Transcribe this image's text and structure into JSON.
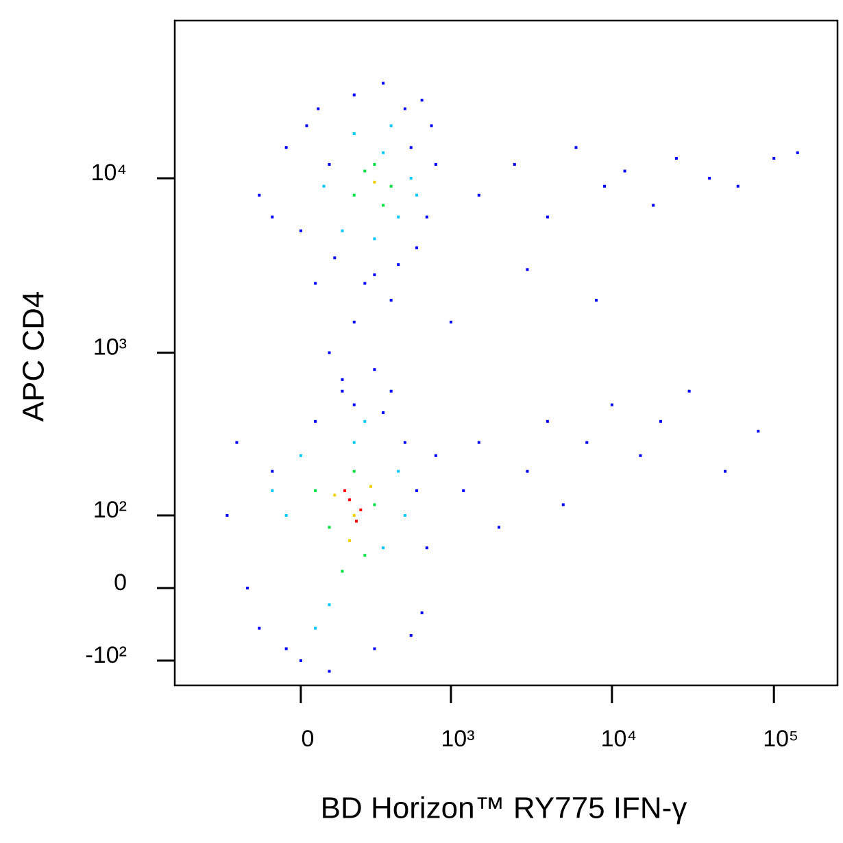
{
  "chart_data": {
    "type": "scatter",
    "scale": "biexponential",
    "xlabel": "BD Horizon™ RY775  IFN-γ",
    "ylabel": "APC CD4",
    "xlim": [
      -700,
      247000
    ],
    "ylim": [
      -150,
      80000
    ],
    "xticks": [
      0,
      {
        "value": 1000,
        "label": "10³"
      },
      {
        "value": 10000,
        "label": "10⁴"
      },
      {
        "value": 100000,
        "label": "10⁵"
      }
    ],
    "yticks": [
      {
        "value": -100,
        "label": "-10²"
      },
      0,
      {
        "value": 100,
        "label": "10²"
      },
      {
        "value": 1000,
        "label": "10³"
      },
      {
        "value": 10000,
        "label": "10⁴"
      }
    ],
    "series": [
      {
        "color": "#0000ff",
        "x": [
          -150,
          -50,
          0,
          60,
          120,
          200,
          300,
          450,
          600,
          700,
          800,
          750,
          650,
          100,
          -100,
          500,
          350,
          20,
          250,
          550,
          -300,
          -200,
          -150,
          -100,
          0,
          50,
          100,
          200,
          300,
          400,
          500,
          600,
          700,
          800,
          650,
          -250,
          150,
          350,
          -50,
          550,
          1200,
          1500,
          2000,
          3000,
          4000,
          5000,
          7000,
          10000,
          15000,
          20000,
          30000,
          50000,
          80000,
          1500,
          2500,
          4000,
          6000,
          9000,
          12000,
          18000,
          25000,
          40000,
          60000,
          100000,
          140000,
          3000,
          8000,
          1000,
          100,
          200,
          300,
          400,
          150,
          50
        ],
        "y": [
          8000,
          15000,
          5000,
          25000,
          3500,
          30000,
          2800,
          3200,
          4000,
          6000,
          12000,
          20000,
          28000,
          12000,
          6000,
          25000,
          35000,
          20000,
          2500,
          15000,
          100,
          0,
          -50,
          200,
          -100,
          400,
          -120,
          500,
          -80,
          600,
          300,
          150,
          50,
          250,
          -30,
          300,
          700,
          450,
          -80,
          -60,
          150,
          300,
          80,
          200,
          400,
          120,
          300,
          500,
          250,
          400,
          600,
          200,
          350,
          8000,
          12000,
          6000,
          15000,
          9000,
          11000,
          7000,
          13000,
          10000,
          9000,
          13000,
          14000,
          3000,
          2000,
          1500,
          1000,
          1500,
          800,
          2000,
          600,
          2500
        ]
      },
      {
        "color": "#00c8ff",
        "x": [
          150,
          300,
          450,
          550,
          200,
          400,
          80,
          600,
          350,
          -50,
          0,
          100,
          200,
          350,
          450,
          500,
          50,
          250,
          -100
        ],
        "y": [
          5000,
          4500,
          6000,
          10000,
          18000,
          20000,
          9000,
          8000,
          14000,
          100,
          250,
          -20,
          300,
          50,
          200,
          100,
          -50,
          400,
          150
        ]
      },
      {
        "color": "#00e040",
        "x": [
          200,
          300,
          400,
          250,
          350,
          50,
          100,
          200,
          300,
          150,
          250
        ],
        "y": [
          8000,
          12000,
          9000,
          11000,
          7000,
          150,
          80,
          200,
          120,
          20,
          40
        ]
      },
      {
        "color": "#f0d000",
        "x": [
          300,
          120,
          200,
          280,
          180
        ],
        "y": [
          9500,
          140,
          100,
          160,
          60
        ]
      },
      {
        "color": "#ff0000",
        "x": [
          180,
          230,
          160,
          210
        ],
        "y": [
          130,
          110,
          150,
          90
        ]
      }
    ]
  }
}
